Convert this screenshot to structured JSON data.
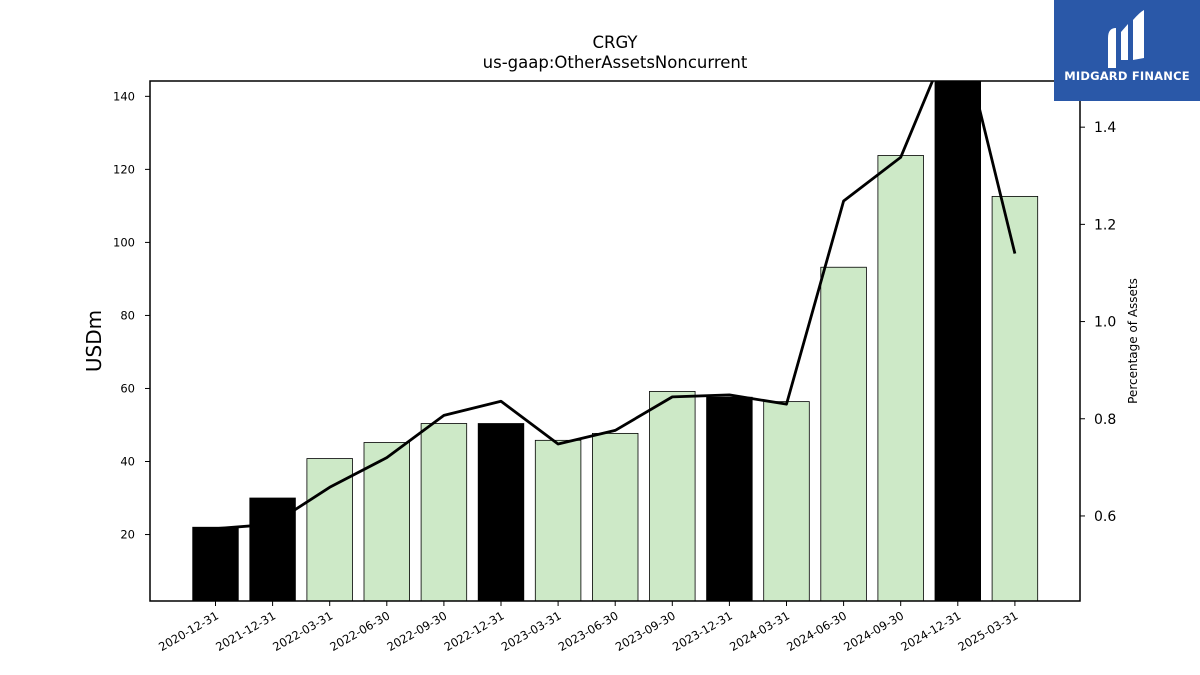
{
  "chart_data": {
    "type": "bar",
    "title": "CRGY",
    "subtitle": "us-gaap:OtherAssetsNoncurrent",
    "ylabel": "USDm",
    "y2label": "Percentage of Assets",
    "categories": [
      "2020-12-31",
      "2021-12-31",
      "2022-03-31",
      "2022-06-30",
      "2022-09-30",
      "2022-12-31",
      "2023-03-31",
      "2023-06-30",
      "2023-09-30",
      "2023-12-31",
      "2024-03-31",
      "2024-06-30",
      "2024-09-30",
      "2024-12-31",
      "2025-03-31"
    ],
    "values": [
      22,
      30,
      40.8,
      45.2,
      50.4,
      50.4,
      45.8,
      47.7,
      59.2,
      57.6,
      56.4,
      93.2,
      123.8,
      146,
      112.6
    ],
    "bar_kinds": [
      "annual",
      "annual",
      "quarter",
      "quarter",
      "quarter",
      "annual",
      "quarter",
      "quarter",
      "quarter",
      "annual",
      "quarter",
      "quarter",
      "quarter",
      "annual",
      "quarter"
    ],
    "bar_colors": {
      "annual": "#000000",
      "quarter": "#cde9c7"
    },
    "line_series": {
      "name": "",
      "axis": "right",
      "values": [
        0.574,
        0.583,
        0.659,
        0.72,
        0.807,
        0.836,
        0.748,
        0.776,
        0.845,
        0.849,
        0.83,
        1.248,
        1.338,
        1.62,
        1.14
      ]
    },
    "ylim": [
      1.8,
      144.2
    ],
    "y2lim": [
      0.425,
      1.495
    ],
    "yticks": [
      20,
      40,
      60,
      80,
      100,
      120,
      140
    ],
    "y2ticks": [
      "0.6",
      "0.8",
      "1.0",
      "1.2",
      "1.4"
    ],
    "grid": false
  },
  "logo": {
    "text": "MIDGARD FINANCE",
    "color": "#2a58a8"
  }
}
